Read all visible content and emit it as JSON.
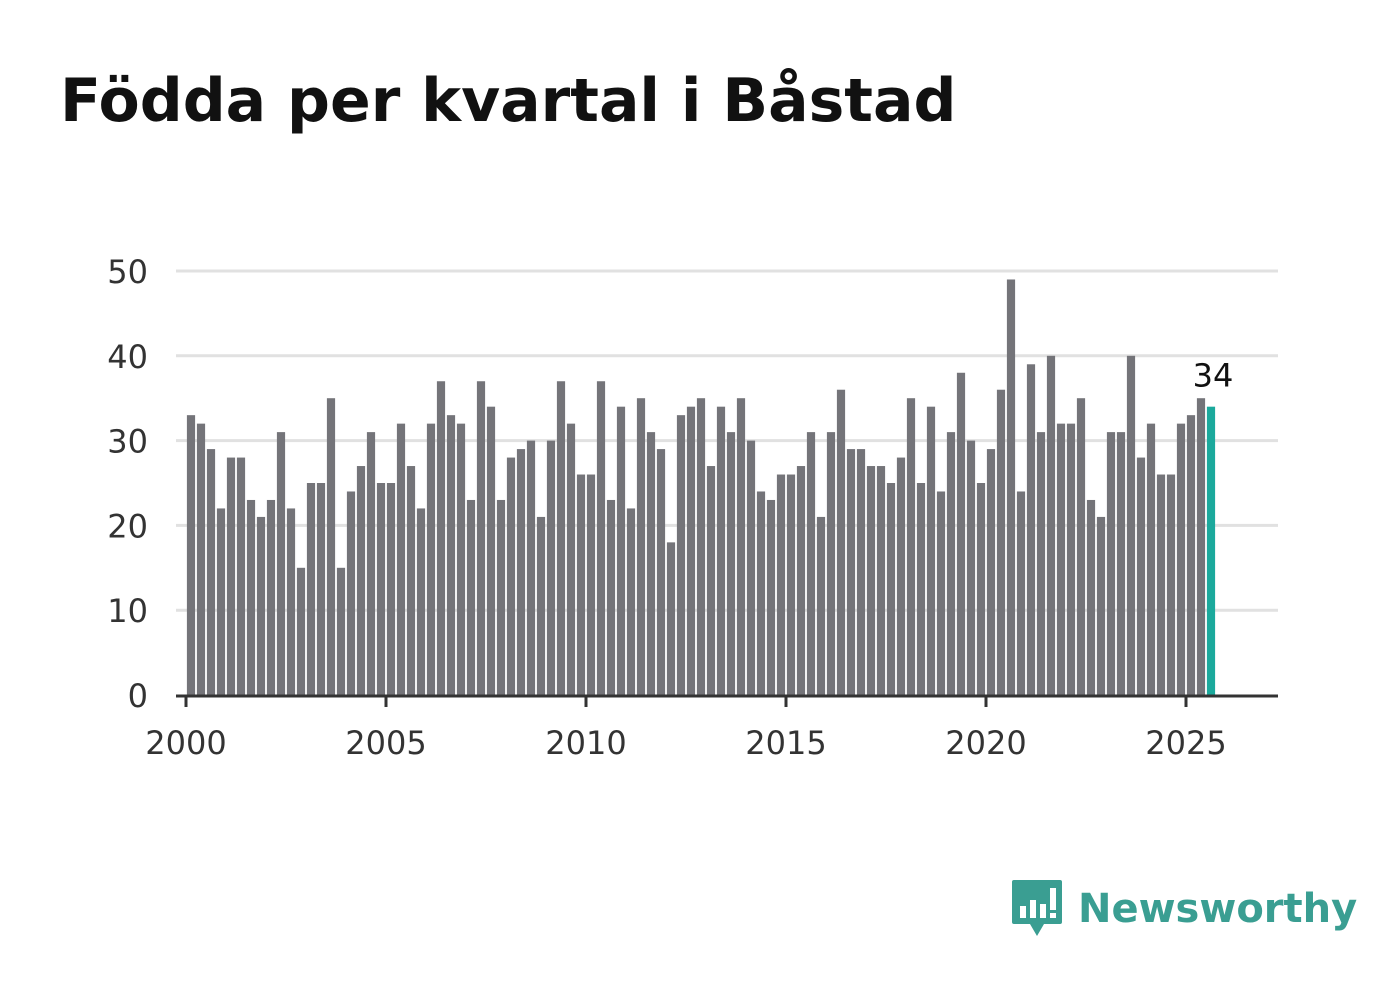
{
  "title": "Födda per kvartal i Båstad",
  "brand": {
    "name": "Newsworthy",
    "logo_icon": "chart-bubble-icon",
    "color": "#3a9e92"
  },
  "colors": {
    "bar": "#747479",
    "highlight": "#1ba99c",
    "grid": "#e1e1e1",
    "axis": "#333333"
  },
  "chart_data": {
    "type": "bar",
    "title": "Födda per kvartal i Båstad",
    "xlabel": "",
    "ylabel": "",
    "ylim": [
      0,
      50
    ],
    "yticks": [
      0,
      10,
      20,
      30,
      40,
      50
    ],
    "xticks": [
      2000,
      2005,
      2010,
      2015,
      2020,
      2025
    ],
    "xlim": [
      1999.75,
      2027.3
    ],
    "grid": true,
    "start_year": 2000,
    "start_quarter": 1,
    "highlight_index": 102,
    "highlight_label": "34",
    "values": [
      33,
      32,
      29,
      22,
      28,
      28,
      23,
      21,
      23,
      31,
      22,
      15,
      25,
      25,
      35,
      15,
      24,
      27,
      31,
      25,
      25,
      32,
      27,
      22,
      32,
      37,
      33,
      32,
      23,
      37,
      34,
      23,
      28,
      29,
      30,
      21,
      30,
      37,
      32,
      26,
      26,
      37,
      23,
      34,
      22,
      35,
      31,
      29,
      18,
      33,
      34,
      35,
      27,
      34,
      31,
      35,
      30,
      24,
      23,
      26,
      26,
      27,
      31,
      21,
      31,
      36,
      29,
      29,
      27,
      27,
      25,
      28,
      35,
      25,
      34,
      24,
      31,
      38,
      30,
      25,
      29,
      36,
      49,
      24,
      39,
      31,
      40,
      32,
      32,
      35,
      23,
      21,
      31,
      31,
      40,
      28,
      32,
      26,
      26,
      32,
      33,
      35,
      34
    ]
  }
}
